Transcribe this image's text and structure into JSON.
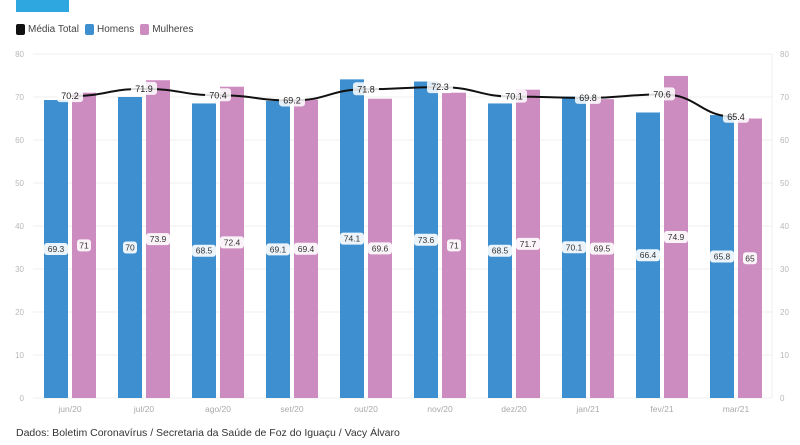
{
  "header": {
    "accent_color": "#2ea7e0"
  },
  "legend": [
    {
      "label": "Média Total",
      "color": "#111111"
    },
    {
      "label": "Homens",
      "color": "#3d8fcf"
    },
    {
      "label": "Mulheres",
      "color": "#cc8cc0"
    }
  ],
  "source": "Dados: Boletim Coronavírus / Secretaria da Saúde de Foz do Iguaçu / Vacy Álvaro",
  "chart_data": {
    "type": "bar",
    "title": "",
    "xlabel": "",
    "ylabel": "",
    "ylim": [
      0,
      80
    ],
    "yticks": [
      0,
      10,
      20,
      30,
      40,
      50,
      60,
      70,
      80
    ],
    "right_axis": true,
    "grid": true,
    "legend_position": "top-left",
    "categories": [
      "jun/20",
      "jul/20",
      "ago/20",
      "set/20",
      "out/20",
      "nov/20",
      "dez/20",
      "jan/21",
      "fev/21",
      "mar/21"
    ],
    "series": [
      {
        "name": "Homens",
        "type": "bar",
        "color": "#3d8fcf",
        "values": [
          69.3,
          70,
          68.5,
          69.1,
          74.1,
          73.6,
          68.5,
          70.1,
          66.4,
          65.8
        ]
      },
      {
        "name": "Mulheres",
        "type": "bar",
        "color": "#cc8cc0",
        "values": [
          71,
          73.9,
          72.4,
          69.4,
          69.6,
          71,
          71.7,
          69.5,
          74.9,
          65
        ]
      },
      {
        "name": "Média Total",
        "type": "line",
        "color": "#111111",
        "values": [
          70.2,
          71.9,
          70.4,
          69.2,
          71.8,
          72.3,
          70.1,
          69.8,
          70.6,
          65.4
        ]
      }
    ]
  }
}
